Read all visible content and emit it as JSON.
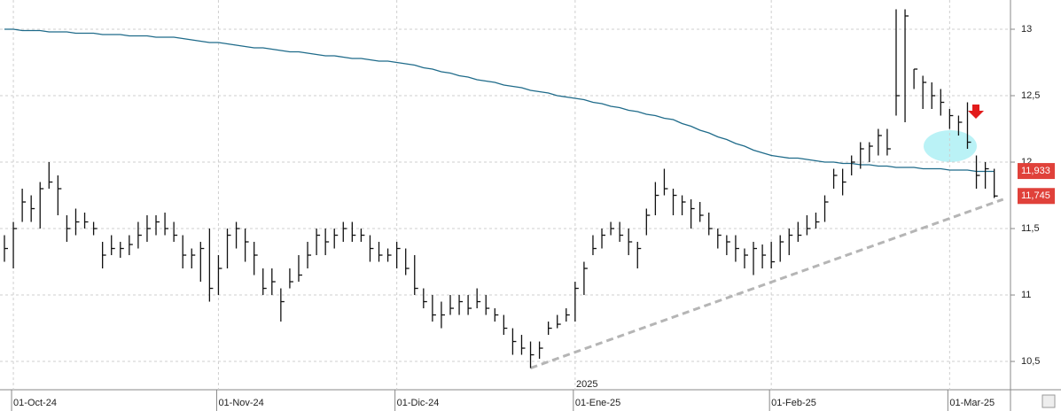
{
  "chart_data": {
    "type": "ohlc",
    "categories": [
      null,
      "01-Oct-24",
      null,
      null,
      null,
      null,
      null,
      null,
      null,
      null,
      null,
      null,
      null,
      null,
      null,
      null,
      null,
      null,
      null,
      null,
      null,
      null,
      null,
      null,
      "01-Nov-24",
      null,
      null,
      null,
      null,
      null,
      null,
      null,
      null,
      null,
      null,
      null,
      null,
      null,
      null,
      null,
      null,
      null,
      null,
      null,
      "01-Dic-24",
      null,
      null,
      null,
      null,
      null,
      null,
      null,
      null,
      null,
      null,
      null,
      null,
      null,
      null,
      null,
      null,
      null,
      null,
      null,
      "01-Ene-25",
      null,
      null,
      null,
      null,
      null,
      null,
      null,
      null,
      null,
      null,
      null,
      null,
      null,
      null,
      null,
      null,
      null,
      null,
      null,
      null,
      null,
      "01-Feb-25",
      null,
      null,
      null,
      null,
      null,
      null,
      null,
      null,
      null,
      null,
      null,
      null,
      null,
      null,
      null,
      null,
      null,
      null,
      null,
      "01-Mar-25",
      null,
      null,
      null,
      null,
      null
    ],
    "year_label": "2025",
    "high": [
      11.45,
      11.55,
      11.8,
      11.75,
      11.85,
      12.0,
      11.9,
      11.6,
      11.65,
      11.62,
      11.55,
      11.4,
      11.45,
      11.4,
      11.45,
      11.55,
      11.6,
      11.6,
      11.62,
      11.55,
      11.45,
      11.35,
      11.4,
      11.5,
      11.3,
      11.5,
      11.55,
      11.5,
      11.4,
      11.2,
      11.2,
      11.05,
      11.2,
      11.3,
      11.4,
      11.5,
      11.5,
      11.5,
      11.55,
      11.55,
      11.5,
      11.45,
      11.4,
      11.35,
      11.4,
      11.35,
      11.3,
      11.05,
      11.0,
      10.95,
      11.0,
      11.0,
      11.0,
      11.05,
      11.0,
      10.9,
      10.85,
      10.75,
      10.7,
      10.65,
      10.65,
      10.8,
      10.85,
      10.9,
      11.1,
      11.25,
      11.45,
      11.5,
      11.55,
      11.55,
      11.5,
      11.4,
      11.65,
      11.85,
      11.95,
      11.8,
      11.75,
      11.72,
      11.7,
      11.62,
      11.5,
      11.45,
      11.45,
      11.35,
      11.4,
      11.38,
      11.4,
      11.45,
      11.5,
      11.55,
      11.6,
      11.62,
      11.75,
      11.95,
      11.95,
      12.05,
      12.15,
      12.15,
      12.25,
      12.25,
      13.15,
      13.15,
      12.7,
      12.65,
      12.6,
      12.55,
      12.4,
      12.35,
      12.45,
      12.05,
      12.0,
      11.95
    ],
    "low": [
      11.25,
      11.2,
      11.55,
      11.55,
      11.5,
      11.8,
      11.6,
      11.4,
      11.45,
      11.5,
      11.45,
      11.2,
      11.3,
      11.28,
      11.3,
      11.35,
      11.4,
      11.45,
      11.45,
      11.4,
      11.2,
      11.2,
      11.1,
      10.95,
      11.0,
      11.2,
      11.35,
      11.25,
      11.15,
      11.0,
      11.0,
      10.8,
      11.05,
      11.1,
      11.2,
      11.3,
      11.3,
      11.35,
      11.4,
      11.4,
      11.4,
      11.25,
      11.25,
      11.25,
      11.2,
      11.15,
      11.0,
      10.9,
      10.8,
      10.75,
      10.85,
      10.85,
      10.85,
      10.9,
      10.85,
      10.8,
      10.7,
      10.55,
      10.55,
      10.45,
      10.52,
      10.7,
      10.75,
      10.8,
      10.8,
      11.0,
      11.3,
      11.35,
      11.45,
      11.4,
      11.3,
      11.2,
      11.45,
      11.6,
      11.75,
      11.6,
      11.6,
      11.5,
      11.55,
      11.45,
      11.35,
      11.3,
      11.25,
      11.2,
      11.15,
      11.2,
      11.2,
      11.25,
      11.3,
      11.4,
      11.45,
      11.5,
      11.55,
      11.8,
      11.75,
      11.9,
      11.95,
      12.0,
      12.05,
      12.05,
      12.35,
      12.3,
      12.55,
      12.4,
      12.4,
      12.35,
      12.25,
      12.2,
      12.1,
      11.8,
      11.8,
      11.73
    ],
    "close": [
      11.35,
      11.5,
      11.7,
      11.65,
      11.8,
      11.85,
      11.8,
      11.5,
      11.55,
      11.55,
      11.5,
      11.3,
      11.35,
      11.35,
      11.38,
      11.45,
      11.5,
      11.55,
      11.5,
      11.45,
      11.3,
      11.3,
      11.35,
      11.05,
      11.2,
      11.45,
      11.5,
      11.4,
      11.3,
      11.05,
      11.1,
      10.95,
      11.1,
      11.15,
      11.3,
      11.45,
      11.4,
      11.45,
      11.5,
      11.45,
      11.45,
      11.35,
      11.3,
      11.3,
      11.35,
      11.2,
      11.05,
      10.95,
      10.85,
      10.85,
      10.9,
      10.95,
      10.9,
      10.95,
      10.9,
      10.85,
      10.75,
      10.65,
      10.6,
      10.55,
      10.6,
      10.75,
      10.78,
      10.85,
      11.05,
      11.2,
      11.35,
      11.45,
      11.5,
      11.45,
      11.4,
      11.35,
      11.6,
      11.75,
      11.8,
      11.75,
      11.7,
      11.65,
      11.6,
      11.5,
      11.45,
      11.4,
      11.35,
      11.3,
      11.35,
      11.3,
      11.25,
      11.4,
      11.45,
      11.45,
      11.5,
      11.55,
      11.7,
      11.9,
      11.85,
      12.0,
      12.1,
      12.12,
      12.2,
      12.1,
      12.5,
      13.1,
      12.7,
      12.6,
      12.5,
      12.45,
      12.35,
      12.3,
      12.15,
      11.9,
      11.95,
      11.745
    ],
    "moving_average": {
      "color": "#1f6b8a",
      "values": [
        13.0,
        13.0,
        12.99,
        12.99,
        12.99,
        12.98,
        12.98,
        12.98,
        12.97,
        12.97,
        12.97,
        12.96,
        12.96,
        12.96,
        12.95,
        12.95,
        12.95,
        12.94,
        12.94,
        12.94,
        12.93,
        12.92,
        12.91,
        12.9,
        12.9,
        12.89,
        12.88,
        12.87,
        12.86,
        12.86,
        12.85,
        12.84,
        12.83,
        12.83,
        12.82,
        12.81,
        12.8,
        12.8,
        12.79,
        12.78,
        12.78,
        12.77,
        12.76,
        12.76,
        12.75,
        12.74,
        12.73,
        12.71,
        12.7,
        12.68,
        12.67,
        12.65,
        12.64,
        12.62,
        12.61,
        12.6,
        12.58,
        12.57,
        12.56,
        12.54,
        12.53,
        12.52,
        12.5,
        12.49,
        12.48,
        12.47,
        12.45,
        12.44,
        12.42,
        12.41,
        12.39,
        12.38,
        12.36,
        12.35,
        12.33,
        12.32,
        12.29,
        12.27,
        12.24,
        12.22,
        12.19,
        12.17,
        12.14,
        12.12,
        12.09,
        12.07,
        12.05,
        12.04,
        12.03,
        12.03,
        12.02,
        12.01,
        12.0,
        12.0,
        11.99,
        11.99,
        11.98,
        11.98,
        11.97,
        11.97,
        11.96,
        11.96,
        11.96,
        11.95,
        11.95,
        11.95,
        11.94,
        11.94,
        11.94,
        11.93,
        11.93,
        11.93
      ]
    },
    "bar_color": "#111111",
    "trendline": {
      "x": [
        59,
        112
      ],
      "y": [
        10.45,
        11.72
      ],
      "color": "#b5b5b5"
    },
    "price_tags": [
      {
        "value": 11.933,
        "label": "11,933"
      },
      {
        "value": 11.745,
        "label": "11,745"
      }
    ],
    "tag_color": "#e0413a",
    "ylim": [
      10.287,
      13.22
    ],
    "yticks": [
      {
        "value": 10.5,
        "label": "10,5"
      },
      11,
      {
        "value": 11.5,
        "label": "11,5"
      },
      12,
      {
        "value": 12.5,
        "label": "12,5"
      },
      13
    ],
    "grid": true
  }
}
